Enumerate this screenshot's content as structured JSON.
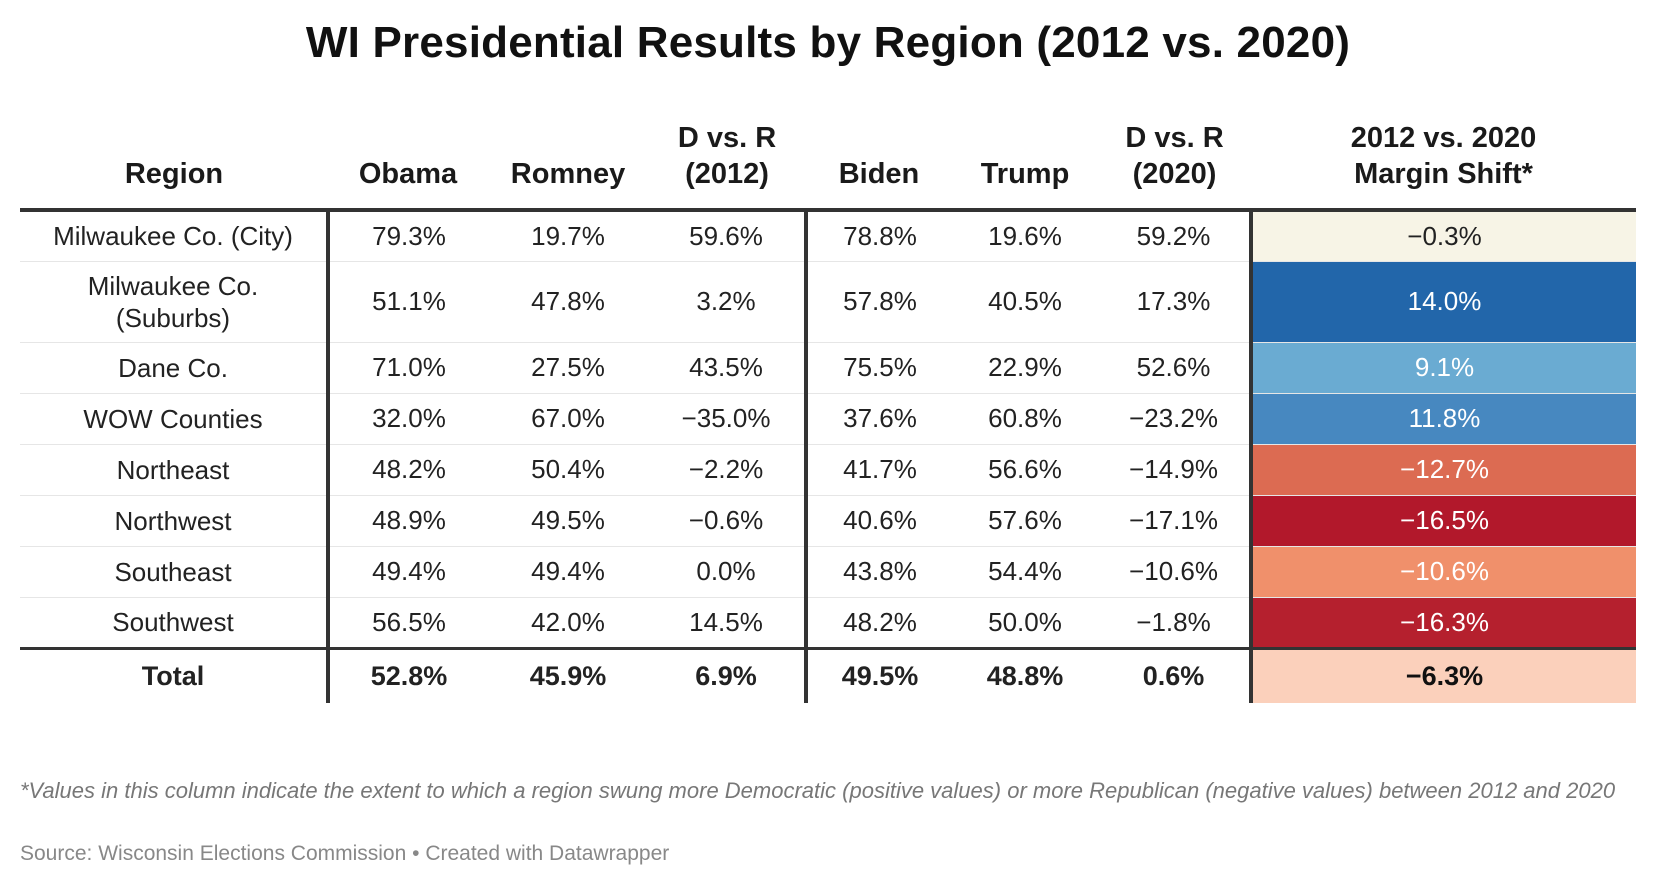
{
  "title": "WI Presidential Results by Region (2012 vs. 2020)",
  "columns": {
    "region": "Region",
    "obama": "Obama",
    "romney": "Romney",
    "dvr2012": "D vs. R (2012)",
    "biden": "Biden",
    "trump": "Trump",
    "dvr2020": "D vs. R (2020)",
    "shift": "2012 vs. 2020 Margin Shift*"
  },
  "chart_data": {
    "type": "table",
    "title": "WI Presidential Results by Region (2012 vs. 2020)",
    "columns": [
      "Region",
      "Obama",
      "Romney",
      "D vs. R (2012)",
      "Biden",
      "Trump",
      "D vs. R (2020)",
      "2012 vs. 2020 Margin Shift*"
    ],
    "rows": [
      {
        "region": "Milwaukee Co. (City)",
        "obama": "79.3%",
        "romney": "19.7%",
        "dvr2012": "59.6%",
        "biden": "78.8%",
        "trump": "19.6%",
        "dvr2020": "59.2%",
        "shift": "−0.3%",
        "shift_color": "#f7f4e6",
        "shift_text_color": "#222222"
      },
      {
        "region": "Milwaukee Co. (Suburbs)",
        "obama": "51.1%",
        "romney": "47.8%",
        "dvr2012": "3.2%",
        "biden": "57.8%",
        "trump": "40.5%",
        "dvr2020": "17.3%",
        "shift": "14.0%",
        "shift_color": "#2266aa",
        "shift_text_color": "#ffffff"
      },
      {
        "region": "Dane Co.",
        "obama": "71.0%",
        "romney": "27.5%",
        "dvr2012": "43.5%",
        "biden": "75.5%",
        "trump": "22.9%",
        "dvr2020": "52.6%",
        "shift": "9.1%",
        "shift_color": "#6aabd2",
        "shift_text_color": "#ffffff"
      },
      {
        "region": "WOW Counties",
        "obama": "32.0%",
        "romney": "67.0%",
        "dvr2012": "−35.0%",
        "biden": "37.6%",
        "trump": "60.8%",
        "dvr2020": "−23.2%",
        "shift": "11.8%",
        "shift_color": "#4788c0",
        "shift_text_color": "#ffffff"
      },
      {
        "region": "Northeast",
        "obama": "48.2%",
        "romney": "50.4%",
        "dvr2012": "−2.2%",
        "biden": "41.7%",
        "trump": "56.6%",
        "dvr2020": "−14.9%",
        "shift": "−12.7%",
        "shift_color": "#dc6b52",
        "shift_text_color": "#ffffff"
      },
      {
        "region": "Northwest",
        "obama": "48.9%",
        "romney": "49.5%",
        "dvr2012": "−0.6%",
        "biden": "40.6%",
        "trump": "57.6%",
        "dvr2020": "−17.1%",
        "shift": "−16.5%",
        "shift_color": "#b2182b",
        "shift_text_color": "#ffffff"
      },
      {
        "region": "Southeast",
        "obama": "49.4%",
        "romney": "49.4%",
        "dvr2012": "0.0%",
        "biden": "43.8%",
        "trump": "54.4%",
        "dvr2020": "−10.6%",
        "shift": "−10.6%",
        "shift_color": "#f0906b",
        "shift_text_color": "#ffffff"
      },
      {
        "region": "Southwest",
        "obama": "56.5%",
        "romney": "42.0%",
        "dvr2012": "14.5%",
        "biden": "48.2%",
        "trump": "50.0%",
        "dvr2020": "−1.8%",
        "shift": "−16.3%",
        "shift_color": "#b5202e",
        "shift_text_color": "#ffffff"
      }
    ],
    "total": {
      "region": "Total",
      "obama": "52.8%",
      "romney": "45.9%",
      "dvr2012": "6.9%",
      "biden": "49.5%",
      "trump": "48.8%",
      "dvr2020": "0.6%",
      "shift": "−6.3%",
      "shift_color": "#fbd0bb",
      "shift_text_color": "#111111"
    }
  },
  "footnote": "*Values in this column indicate the extent to which a region swung more Democratic (positive values) or more Republican (negative values) between 2012 and 2020",
  "source": "Source: Wisconsin Elections Commission • Created with Datawrapper"
}
